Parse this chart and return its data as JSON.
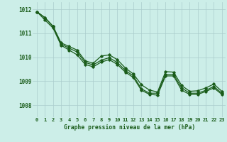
{
  "title": "Graphe pression niveau de la mer (hPa)",
  "background_color": "#cceee8",
  "grid_color": "#aacccc",
  "line_color": "#1a5c1a",
  "x_labels": [
    "0",
    "1",
    "2",
    "3",
    "4",
    "5",
    "6",
    "7",
    "8",
    "9",
    "10",
    "11",
    "12",
    "13",
    "14",
    "15",
    "16",
    "17",
    "18",
    "19",
    "20",
    "21",
    "22",
    "23"
  ],
  "ylim": [
    1007.5,
    1012.3
  ],
  "yticks": [
    1008,
    1009,
    1010,
    1011,
    1012
  ],
  "series1": [
    1011.9,
    1011.65,
    1011.3,
    1010.6,
    1010.45,
    1010.3,
    1009.85,
    1009.75,
    1010.05,
    1010.1,
    1009.9,
    1009.55,
    1009.3,
    1008.85,
    1008.63,
    1008.55,
    1009.4,
    1009.38,
    1008.82,
    1008.58,
    1008.6,
    1008.72,
    1008.88,
    1008.58
  ],
  "series2": [
    1011.9,
    1011.65,
    1011.28,
    1010.55,
    1010.38,
    1010.22,
    1009.78,
    1009.68,
    1009.88,
    1009.98,
    1009.78,
    1009.45,
    1009.22,
    1008.68,
    1008.5,
    1008.5,
    1009.28,
    1009.28,
    1008.72,
    1008.5,
    1008.5,
    1008.62,
    1008.78,
    1008.5
  ],
  "series3": [
    1011.9,
    1011.55,
    1011.22,
    1010.5,
    1010.3,
    1010.1,
    1009.7,
    1009.6,
    1009.8,
    1009.9,
    1009.7,
    1009.38,
    1009.15,
    1008.62,
    1008.45,
    1008.42,
    1009.22,
    1009.22,
    1008.62,
    1008.45,
    1008.45,
    1008.57,
    1008.72,
    1008.45
  ]
}
